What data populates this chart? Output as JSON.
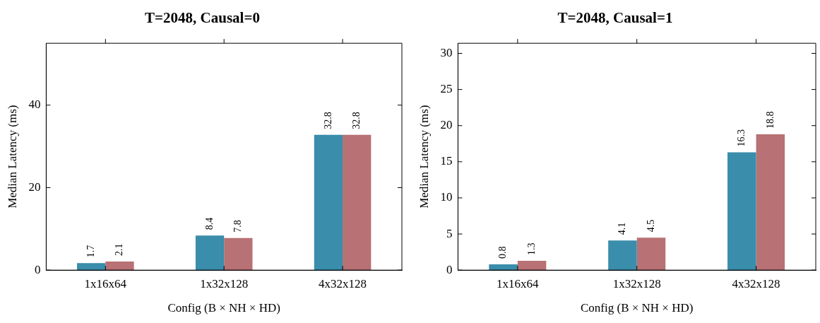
{
  "chart_data": [
    {
      "type": "bar",
      "title": "T=2048, Causal=0",
      "xlabel": "Config (B × NH × HD)",
      "ylabel": "Median Latency (ms)",
      "categories": [
        "1x16x64",
        "1x32x128",
        "4x32x128"
      ],
      "series": [
        {
          "color": "#3a8dab",
          "values": [
            1.7,
            8.4,
            32.8
          ]
        },
        {
          "color": "#b87174",
          "values": [
            2.1,
            7.8,
            32.8
          ]
        }
      ],
      "ylim": [
        0,
        55
      ],
      "yticks": [
        0,
        20,
        40
      ],
      "data_labels": true
    },
    {
      "type": "bar",
      "title": "T=2048, Causal=1",
      "xlabel": "Config (B × NH × HD)",
      "ylabel": "Median Latency (ms)",
      "categories": [
        "1x16x64",
        "1x32x128",
        "4x32x128"
      ],
      "series": [
        {
          "color": "#3a8dab",
          "values": [
            0.8,
            4.1,
            16.3
          ]
        },
        {
          "color": "#b87174",
          "values": [
            1.3,
            4.5,
            18.8
          ]
        }
      ],
      "ylim": [
        0,
        31.4
      ],
      "yticks": [
        0,
        5,
        10,
        15,
        20,
        25,
        30
      ],
      "data_labels": true
    }
  ]
}
